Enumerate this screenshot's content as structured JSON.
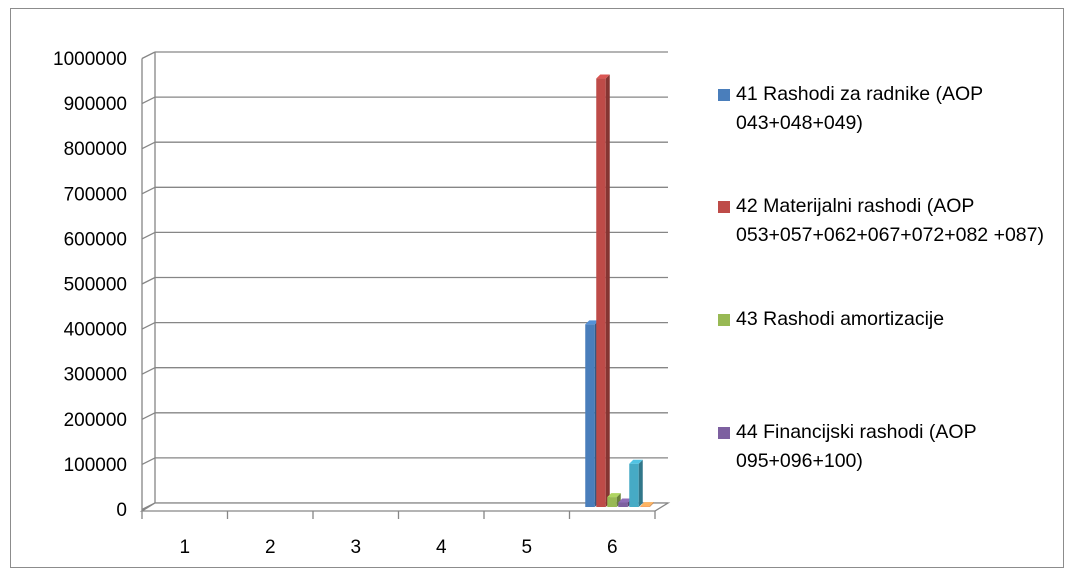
{
  "chart_data": {
    "type": "bar",
    "title": "",
    "xlabel": "",
    "ylabel": "",
    "categories": [
      "1",
      "2",
      "3",
      "4",
      "5",
      "6"
    ],
    "ylim": [
      0,
      1000000
    ],
    "yticks": [
      "0",
      "100000",
      "200000",
      "300000",
      "400000",
      "500000",
      "600000",
      "700000",
      "800000",
      "900000",
      "1000000"
    ],
    "grid": true,
    "legend_position": "right",
    "series": [
      {
        "name": "41 Rashodi za radnike (AOP 043+048+049)",
        "color": "#4a7ebb",
        "values": [
          0,
          0,
          0,
          0,
          0,
          405000
        ]
      },
      {
        "name": "42 Materijalni rashodi (AOP 053+057+062+067+072+082 +087)",
        "color": "#be4b48",
        "values": [
          0,
          0,
          0,
          0,
          0,
          950000
        ]
      },
      {
        "name": "43 Rashodi amortizacije",
        "color": "#98b954",
        "values": [
          0,
          0,
          0,
          0,
          0,
          22000
        ]
      },
      {
        "name": "44 Financijski rashodi (AOP 095+096+100)",
        "color": "#7d60a0",
        "values": [
          0,
          0,
          0,
          0,
          0,
          10000
        ]
      },
      {
        "name": "",
        "color": "#46aac5",
        "values": [
          0,
          0,
          0,
          0,
          0,
          96000
        ]
      },
      {
        "name": "",
        "color": "#f59d56",
        "values": [
          0,
          0,
          0,
          0,
          0,
          2000
        ]
      }
    ]
  }
}
